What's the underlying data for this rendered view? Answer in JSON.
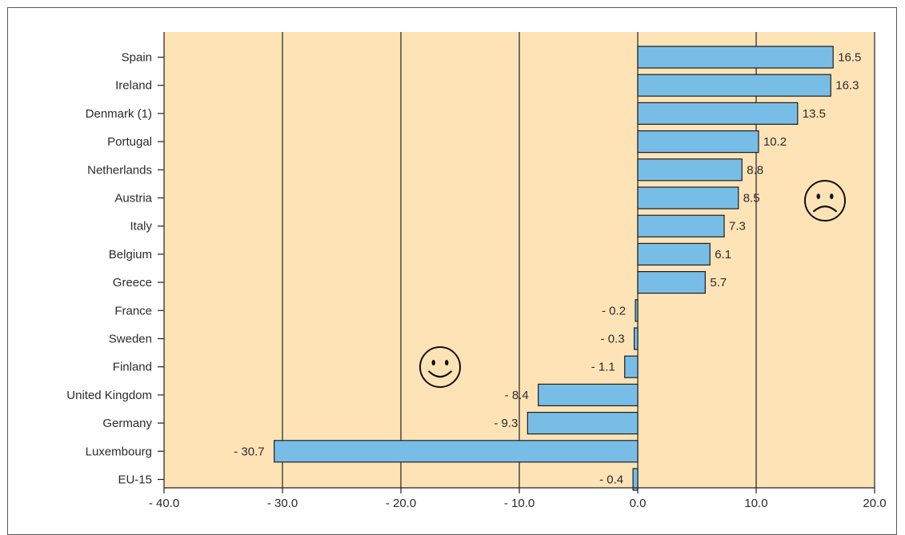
{
  "chart_data": {
    "type": "bar",
    "orientation": "horizontal",
    "categories": [
      "Spain",
      "Ireland",
      "Denmark (1)",
      "Portugal",
      "Netherlands",
      "Austria",
      "Italy",
      "Belgium",
      "Greece",
      "France",
      "Sweden",
      "Finland",
      "United Kingdom",
      "Germany",
      "Luxembourg",
      "EU-15"
    ],
    "values": [
      16.5,
      16.3,
      13.5,
      10.2,
      8.8,
      8.5,
      7.3,
      6.1,
      5.7,
      -0.2,
      -0.3,
      -1.1,
      -8.4,
      -9.3,
      -30.7,
      -0.4
    ],
    "value_labels": [
      "16.5",
      "16.3",
      "13.5",
      "10.2",
      "8.8",
      "8.5",
      "7.3",
      "6.1",
      "5.7",
      "- 0.2",
      "- 0.3",
      "- 1.1",
      "- 8.4",
      "- 9.3",
      "- 30.7",
      "- 0.4"
    ],
    "xlim": [
      -40,
      20
    ],
    "xticks": [
      -40,
      -30,
      -20,
      -10,
      0,
      10,
      20
    ],
    "xtick_labels": [
      "- 40.0",
      "- 30.0",
      "- 20.0",
      "- 10.0",
      "0.0",
      "10.0",
      "20.0"
    ],
    "grid": "vertical",
    "title": "",
    "xlabel": "",
    "ylabel": "",
    "colors": {
      "bar": "#78bde6",
      "bar_stroke": "#1e1e1e",
      "plot_background": "#fde3b6",
      "gridline": "#222222",
      "text": "#2b2b2b"
    },
    "annotations": [
      {
        "icon": "sad-face-icon",
        "region": "positive"
      },
      {
        "icon": "smiley-face-icon",
        "region": "negative"
      }
    ]
  }
}
